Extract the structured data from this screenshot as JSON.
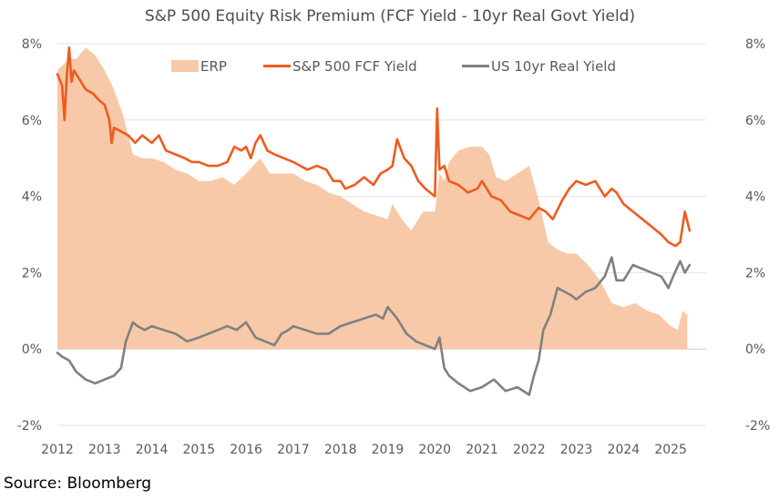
{
  "chart_data": {
    "type": "line",
    "title": "S&P 500 Equity Risk Premium (FCF Yield - 10yr Real Govt Yield)",
    "xlabel": "",
    "ylabel": "",
    "x_range": [
      2012.0,
      2025.75
    ],
    "x_tick_labels": [
      "2012",
      "2013",
      "2014",
      "2015",
      "2016",
      "2017",
      "2018",
      "2019",
      "2020",
      "2021",
      "2022",
      "2023",
      "2024",
      "2025"
    ],
    "ylim": [
      -2,
      8
    ],
    "y_tick_labels": [
      "8%",
      "6%",
      "4%",
      "2%",
      "0%",
      "-2%"
    ],
    "y_tick_values": [
      8,
      6,
      4,
      2,
      0,
      -2
    ],
    "grid": "horizontal",
    "legend_position": "top",
    "series": [
      {
        "name": "ERP",
        "kind": "area",
        "color": "#F8C9A8",
        "x": [
          2012.0,
          2012.25,
          2012.4,
          2012.6,
          2012.8,
          2013.0,
          2013.2,
          2013.4,
          2013.6,
          2013.8,
          2014.0,
          2014.25,
          2014.5,
          2014.75,
          2015.0,
          2015.25,
          2015.5,
          2015.75,
          2016.0,
          2016.15,
          2016.3,
          2016.5,
          2016.75,
          2017.0,
          2017.25,
          2017.5,
          2017.75,
          2018.0,
          2018.25,
          2018.5,
          2018.75,
          2019.0,
          2019.1,
          2019.3,
          2019.5,
          2019.75,
          2020.0,
          2020.1,
          2020.2,
          2020.3,
          2020.5,
          2020.75,
          2021.0,
          2021.15,
          2021.3,
          2021.5,
          2021.75,
          2022.0,
          2022.2,
          2022.4,
          2022.6,
          2022.8,
          2023.0,
          2023.25,
          2023.5,
          2023.75,
          2024.0,
          2024.25,
          2024.5,
          2024.75,
          2025.0,
          2025.15,
          2025.25,
          2025.35
        ],
        "values": [
          7.3,
          7.6,
          7.6,
          7.9,
          7.7,
          7.3,
          6.8,
          6.1,
          5.1,
          5.0,
          5.0,
          4.9,
          4.7,
          4.6,
          4.4,
          4.4,
          4.5,
          4.3,
          4.6,
          4.8,
          5.0,
          4.6,
          4.6,
          4.6,
          4.4,
          4.3,
          4.1,
          4.0,
          3.8,
          3.6,
          3.5,
          3.4,
          3.8,
          3.4,
          3.1,
          3.6,
          3.6,
          4.6,
          4.4,
          4.9,
          5.2,
          5.3,
          5.3,
          5.1,
          4.5,
          4.4,
          4.6,
          4.8,
          3.9,
          2.8,
          2.6,
          2.5,
          2.5,
          2.2,
          1.8,
          1.2,
          1.1,
          1.2,
          1.0,
          0.9,
          0.6,
          0.5,
          1.0,
          0.9
        ]
      },
      {
        "name": "S&P 500 FCF Yield",
        "kind": "line",
        "color": "#F05A1E",
        "x": [
          2012.0,
          2012.1,
          2012.15,
          2012.2,
          2012.25,
          2012.3,
          2012.35,
          2012.45,
          2012.6,
          2012.75,
          2012.9,
          2013.0,
          2013.1,
          2013.15,
          2013.2,
          2013.35,
          2013.5,
          2013.65,
          2013.8,
          2014.0,
          2014.15,
          2014.3,
          2014.5,
          2014.7,
          2014.85,
          2015.0,
          2015.2,
          2015.4,
          2015.6,
          2015.75,
          2015.9,
          2016.0,
          2016.1,
          2016.2,
          2016.3,
          2016.45,
          2016.6,
          2016.8,
          2017.0,
          2017.15,
          2017.3,
          2017.5,
          2017.7,
          2017.85,
          2018.0,
          2018.1,
          2018.3,
          2018.5,
          2018.7,
          2018.85,
          2019.0,
          2019.1,
          2019.2,
          2019.35,
          2019.5,
          2019.65,
          2019.8,
          2020.0,
          2020.05,
          2020.1,
          2020.2,
          2020.3,
          2020.5,
          2020.7,
          2020.9,
          2021.0,
          2021.2,
          2021.4,
          2021.6,
          2021.8,
          2022.0,
          2022.2,
          2022.35,
          2022.5,
          2022.7,
          2022.85,
          2023.0,
          2023.2,
          2023.4,
          2023.6,
          2023.75,
          2023.85,
          2024.0,
          2024.2,
          2024.4,
          2024.6,
          2024.8,
          2024.95,
          2025.1,
          2025.2,
          2025.3,
          2025.4
        ],
        "values": [
          7.2,
          6.9,
          6.0,
          7.2,
          7.9,
          7.0,
          7.3,
          7.1,
          6.8,
          6.7,
          6.5,
          6.4,
          6.0,
          5.4,
          5.8,
          5.7,
          5.6,
          5.4,
          5.6,
          5.4,
          5.6,
          5.2,
          5.1,
          5.0,
          4.9,
          4.9,
          4.8,
          4.8,
          4.9,
          5.3,
          5.2,
          5.3,
          5.0,
          5.4,
          5.6,
          5.2,
          5.1,
          5.0,
          4.9,
          4.8,
          4.7,
          4.8,
          4.7,
          4.4,
          4.4,
          4.2,
          4.3,
          4.5,
          4.3,
          4.6,
          4.7,
          4.8,
          5.5,
          5.0,
          4.8,
          4.4,
          4.2,
          4.0,
          6.3,
          4.7,
          4.8,
          4.4,
          4.3,
          4.1,
          4.2,
          4.4,
          4.0,
          3.9,
          3.6,
          3.5,
          3.4,
          3.7,
          3.6,
          3.4,
          3.9,
          4.2,
          4.4,
          4.3,
          4.4,
          4.0,
          4.2,
          4.1,
          3.8,
          3.6,
          3.4,
          3.2,
          3.0,
          2.8,
          2.7,
          2.8,
          3.6,
          3.1
        ]
      },
      {
        "name": "US 10yr Real Yield",
        "kind": "line",
        "color": "#808080",
        "x": [
          2012.0,
          2012.1,
          2012.25,
          2012.4,
          2012.6,
          2012.8,
          2013.0,
          2013.2,
          2013.35,
          2013.45,
          2013.6,
          2013.7,
          2013.85,
          2014.0,
          2014.25,
          2014.5,
          2014.75,
          2015.0,
          2015.2,
          2015.4,
          2015.6,
          2015.8,
          2016.0,
          2016.2,
          2016.4,
          2016.6,
          2016.75,
          2016.9,
          2017.0,
          2017.25,
          2017.5,
          2017.75,
          2018.0,
          2018.25,
          2018.5,
          2018.75,
          2018.9,
          2019.0,
          2019.2,
          2019.4,
          2019.6,
          2019.8,
          2020.0,
          2020.1,
          2020.2,
          2020.3,
          2020.5,
          2020.75,
          2021.0,
          2021.25,
          2021.5,
          2021.75,
          2022.0,
          2022.1,
          2022.2,
          2022.3,
          2022.45,
          2022.6,
          2022.75,
          2022.9,
          2023.0,
          2023.2,
          2023.4,
          2023.6,
          2023.75,
          2023.85,
          2024.0,
          2024.2,
          2024.4,
          2024.6,
          2024.8,
          2024.95,
          2025.05,
          2025.2,
          2025.3,
          2025.4
        ],
        "values": [
          -0.1,
          -0.2,
          -0.3,
          -0.6,
          -0.8,
          -0.9,
          -0.8,
          -0.7,
          -0.5,
          0.2,
          0.7,
          0.6,
          0.5,
          0.6,
          0.5,
          0.4,
          0.2,
          0.3,
          0.4,
          0.5,
          0.6,
          0.5,
          0.7,
          0.3,
          0.2,
          0.1,
          0.4,
          0.5,
          0.6,
          0.5,
          0.4,
          0.4,
          0.6,
          0.7,
          0.8,
          0.9,
          0.8,
          1.1,
          0.8,
          0.4,
          0.2,
          0.1,
          0.0,
          0.3,
          -0.5,
          -0.7,
          -0.9,
          -1.1,
          -1.0,
          -0.8,
          -1.1,
          -1.0,
          -1.2,
          -0.7,
          -0.3,
          0.5,
          0.9,
          1.6,
          1.5,
          1.4,
          1.3,
          1.5,
          1.6,
          1.9,
          2.4,
          1.8,
          1.8,
          2.2,
          2.1,
          2.0,
          1.9,
          1.6,
          1.9,
          2.3,
          2.0,
          2.2
        ]
      }
    ]
  },
  "footer": {
    "source": "Source: Bloomberg"
  }
}
